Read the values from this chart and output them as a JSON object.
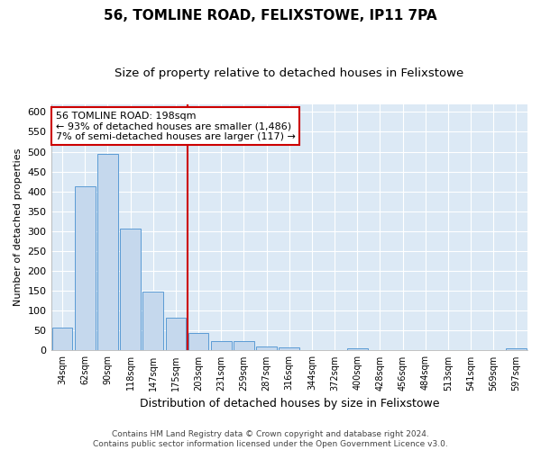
{
  "title1": "56, TOMLINE ROAD, FELIXSTOWE, IP11 7PA",
  "title2": "Size of property relative to detached houses in Felixstowe",
  "xlabel": "Distribution of detached houses by size in Felixstowe",
  "ylabel": "Number of detached properties",
  "categories": [
    "34sqm",
    "62sqm",
    "90sqm",
    "118sqm",
    "147sqm",
    "175sqm",
    "203sqm",
    "231sqm",
    "259sqm",
    "287sqm",
    "316sqm",
    "344sqm",
    "372sqm",
    "400sqm",
    "428sqm",
    "456sqm",
    "484sqm",
    "513sqm",
    "541sqm",
    "569sqm",
    "597sqm"
  ],
  "values": [
    57,
    412,
    495,
    307,
    148,
    82,
    44,
    24,
    24,
    10,
    7,
    0,
    0,
    5,
    0,
    0,
    0,
    0,
    0,
    0,
    5
  ],
  "bar_color": "#c5d8ed",
  "bar_edge_color": "#5b9bd5",
  "vline_x_idx": 6,
  "vline_color": "#cc0000",
  "annotation_line1": "56 TOMLINE ROAD: 198sqm",
  "annotation_line2": "← 93% of detached houses are smaller (1,486)",
  "annotation_line3": "7% of semi-detached houses are larger (117) →",
  "annotation_box_color": "#ffffff",
  "annotation_box_edge_color": "#cc0000",
  "ylim": [
    0,
    620
  ],
  "yticks": [
    0,
    50,
    100,
    150,
    200,
    250,
    300,
    350,
    400,
    450,
    500,
    550,
    600
  ],
  "footer": "Contains HM Land Registry data © Crown copyright and database right 2024.\nContains public sector information licensed under the Open Government Licence v3.0.",
  "bg_color": "#ffffff",
  "plot_bg_color": "#dce9f5",
  "grid_color": "#ffffff",
  "title1_fontsize": 11,
  "title2_fontsize": 9.5
}
